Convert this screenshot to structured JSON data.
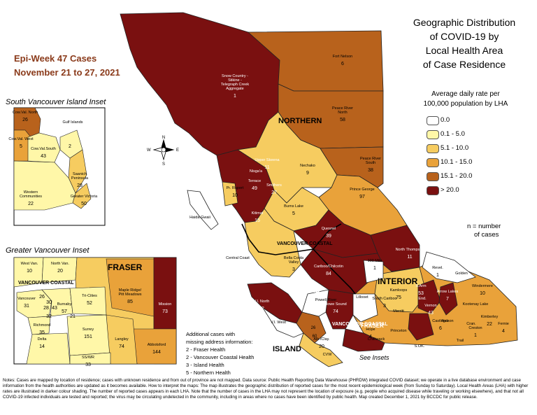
{
  "epi_week": {
    "line1": "Epi-Week 47 Cases",
    "line2": "November 21 to 27, 2021"
  },
  "title": {
    "line1": "Geographic Distribution",
    "line2": "of COVID-19 by",
    "line3": "Local Health Area",
    "line4": "of Case Residence"
  },
  "legend": {
    "title_line1": "Average daily rate per",
    "title_line2": "100,000 population by LHA",
    "items": [
      {
        "label": "0.0",
        "color": "#ffffff"
      },
      {
        "label": "0.1 - 5.0",
        "color": "#fff7a8"
      },
      {
        "label": "5.1 - 10.0",
        "color": "#f6cc60"
      },
      {
        "label": "10.1 - 15.0",
        "color": "#e9a23a"
      },
      {
        "label": "15.1 - 20.0",
        "color": "#b8621c"
      },
      {
        "label": "> 20.0",
        "color": "#7a1010"
      }
    ]
  },
  "n_note": {
    "line1": "n = number",
    "line2": "of cases"
  },
  "region_labels": {
    "northern": "NORTHERN",
    "interior": "INTERIOR",
    "island": "ISLAND",
    "island_south": "ISLAND",
    "fraser": "FRASER",
    "vancoastal": "VANCOUVER COASTAL",
    "vancoastal_main": "VANCOUVER COASTAL"
  },
  "main_map_labels": [
    {
      "name": "Fort Nelson",
      "n": "6"
    },
    {
      "name": "Snow Country - Stikine - Telegraph Creek Aggregate",
      "n": "1"
    },
    {
      "name": "Peace River North",
      "n": "58"
    },
    {
      "name": "Peace River South",
      "n": "38"
    },
    {
      "name": "Nechako",
      "n": "9"
    },
    {
      "name": "Upper Skeena",
      "n": "11"
    },
    {
      "name": "Nisga'a",
      "n": ""
    },
    {
      "name": "Terrace",
      "n": "49"
    },
    {
      "name": "Smithers",
      "n": "27"
    },
    {
      "name": "Pr. Rupert",
      "n": "10"
    },
    {
      "name": "Burns Lake",
      "n": "5"
    },
    {
      "name": "Kitimat",
      "n": "15"
    },
    {
      "name": "Haida Gwaii",
      "n": ""
    },
    {
      "name": "Prince George",
      "n": "97"
    },
    {
      "name": "Quesnel",
      "n": "39"
    },
    {
      "name": "Central Coast",
      "n": ""
    },
    {
      "name": "Bella Coola Valley",
      "n": "3"
    },
    {
      "name": "Cariboo/Chilcotin",
      "n": "84"
    },
    {
      "name": "North Thompson",
      "n": "11"
    },
    {
      "name": "100 Mile",
      "n": "1"
    },
    {
      "name": "Revel.",
      "n": "1"
    },
    {
      "name": "Golden",
      "n": ""
    },
    {
      "name": "Kamloops",
      "n": "75"
    },
    {
      "name": "Windermere",
      "n": "10"
    },
    {
      "name": "Lillooet",
      "n": ""
    },
    {
      "name": "South Cariboo",
      "n": "3"
    },
    {
      "name": "Arrow Lakes",
      "n": "7"
    },
    {
      "name": "S.Arm",
      "n": "53"
    },
    {
      "name": "End.",
      "n": ""
    },
    {
      "name": "Vernon",
      "n": "43"
    },
    {
      "name": "Kootenay Lake",
      "n": ""
    },
    {
      "name": "Kimberley",
      "n": "22"
    },
    {
      "name": "Cran.",
      "n": ""
    },
    {
      "name": "Fernie",
      "n": "4"
    },
    {
      "name": "Nelson",
      "n": ""
    },
    {
      "name": "Creston",
      "n": "1"
    },
    {
      "name": "Trail",
      "n": ""
    },
    {
      "name": "Castlegar",
      "n": "6"
    },
    {
      "name": "Merritt",
      "n": ""
    },
    {
      "name": "Princeton",
      "n": ""
    },
    {
      "name": "S.OK.",
      "n": ""
    },
    {
      "name": "V.I. North",
      "n": "22"
    },
    {
      "name": "V.I. West",
      "n": ""
    },
    {
      "name": "Powell River",
      "n": ""
    },
    {
      "name": "Howe Sound",
      "n": "74"
    },
    {
      "name": "Alb./Clay.",
      "n": "20"
    },
    {
      "name": "Chilliwack",
      "n": ""
    },
    {
      "name": "Hope",
      "n": "4"
    },
    {
      "name": "CVW",
      "n": ""
    }
  ],
  "mid_island_counts": [
    "26",
    "60"
  ],
  "south_island_inset": {
    "title": "South Vancouver Island Inset",
    "labels": [
      {
        "name": "Cow.Val. North",
        "n": "26"
      },
      {
        "name": "Gulf Islands",
        "n": ""
      },
      {
        "name": "Cow.Val. West",
        "n": "5"
      },
      {
        "name": "Cow.Val.South",
        "n": "43"
      },
      {
        "name": "",
        "n": "2"
      },
      {
        "name": "Saanich Peninsula",
        "n": "28"
      },
      {
        "name": "Western Communities",
        "n": "22"
      },
      {
        "name": "Greater Victoria",
        "n": "50"
      }
    ]
  },
  "greater_vancouver_inset": {
    "title": "Greater Vancouver Inset",
    "labels": [
      {
        "name": "West Van.",
        "n": "10"
      },
      {
        "name": "North Van.",
        "n": "20"
      },
      {
        "name": "Vancouver",
        "n": "31"
      },
      {
        "name": "Burnaby",
        "n": "57"
      },
      {
        "name": "Tri-Cities",
        "n": "52"
      },
      {
        "name": "Maple Ridge/ Pitt Meadows",
        "n": "85"
      },
      {
        "name": "Mission",
        "n": "73"
      },
      {
        "name": "Richmond",
        "n": "35"
      },
      {
        "name": "Delta",
        "n": "14"
      },
      {
        "name": "Surrey",
        "n": "151"
      },
      {
        "name": "Langley",
        "n": "74"
      },
      {
        "name": "Abbotsford",
        "n": "144"
      },
      {
        "name": "SS/WR",
        "n": "33"
      }
    ],
    "small_counts": [
      "26",
      "30",
      "28",
      "43",
      "32",
      "21"
    ]
  },
  "additional_cases": {
    "title_line1": "Additional cases with",
    "title_line2": "missing address information:",
    "items": [
      "2 - Fraser Health",
      "2 - Vancouver Coastal Health",
      "3 - Island Health",
      "5 - Northern Health"
    ]
  },
  "see_insets": "See Insets",
  "compass": {
    "n": "N",
    "s": "S",
    "e": "E",
    "w": "W"
  },
  "notes": "Notes: Cases are mapped by location of residence; cases with unknown residence and from out of province are not mapped. Data source: Public Health Reporting Data Warehouse (PHRDW) integrated COVID dataset; we operate in a live database environment and case information from the health authorities are updated as it becomes available. How to interpret the maps: The map illustrates the geographic distribution of reported cases for the most recent epidemiological week (from Sunday to Saturday). Local Health Areas (LHA) with higher rates are illustrated in darker colour shading. The number of reported cases appears in each LHA. Note that the number of cases in the LHA may not represent the location of exposure (e.g. people who acquired disease while traveling or working elsewhere), and that not all COVID-19 infected individuals are tested and reported; the virus may be circulating undetected in the community, including in areas where no cases have been identified by public health. Map created December 1, 2021 by BCCDC for public release."
}
